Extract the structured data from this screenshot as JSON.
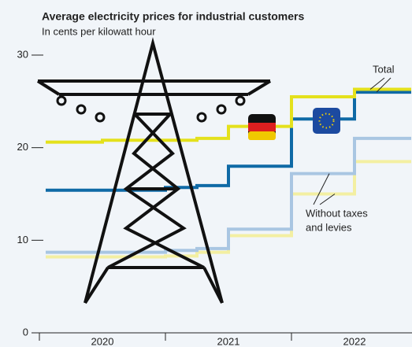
{
  "chart_data": {
    "type": "step",
    "title": "Average electricity prices for industrial customers",
    "subtitle": "In cents per kilowatt hour",
    "x": [
      2020.05,
      2020.5,
      2021.0,
      2021.25,
      2021.5,
      2022.0,
      2022.5,
      2022.95
    ],
    "series": [
      {
        "color": "#e4e11c",
        "values": [
          20.6,
          20.8,
          20.8,
          21.0,
          22.3,
          25.5,
          26.3,
          26.3
        ]
      },
      {
        "color": "#0f6aa6",
        "values": [
          15.4,
          15.4,
          15.7,
          15.9,
          18.0,
          23.1,
          26.0,
          26.0
        ]
      },
      {
        "color": "#a9c6e2",
        "values": [
          8.7,
          8.7,
          8.9,
          9.1,
          11.2,
          17.2,
          21.0,
          21.0
        ]
      },
      {
        "color": "#f3efa2",
        "values": [
          8.2,
          8.2,
          8.3,
          8.7,
          10.5,
          15.0,
          18.5,
          18.5
        ]
      }
    ],
    "xlim": [
      2020,
      2022.95
    ],
    "xticks": [
      {
        "value": 2020,
        "label": "2020"
      },
      {
        "value": 2021,
        "label": "2021"
      },
      {
        "value": 2022,
        "label": "2022"
      }
    ],
    "ylim": [
      0,
      30
    ],
    "yticks": [
      0,
      10,
      20,
      30
    ],
    "annotations": [
      {
        "lines": [
          "Total"
        ]
      },
      {
        "lines": [
          "Without taxes",
          "and levies"
        ]
      }
    ]
  }
}
